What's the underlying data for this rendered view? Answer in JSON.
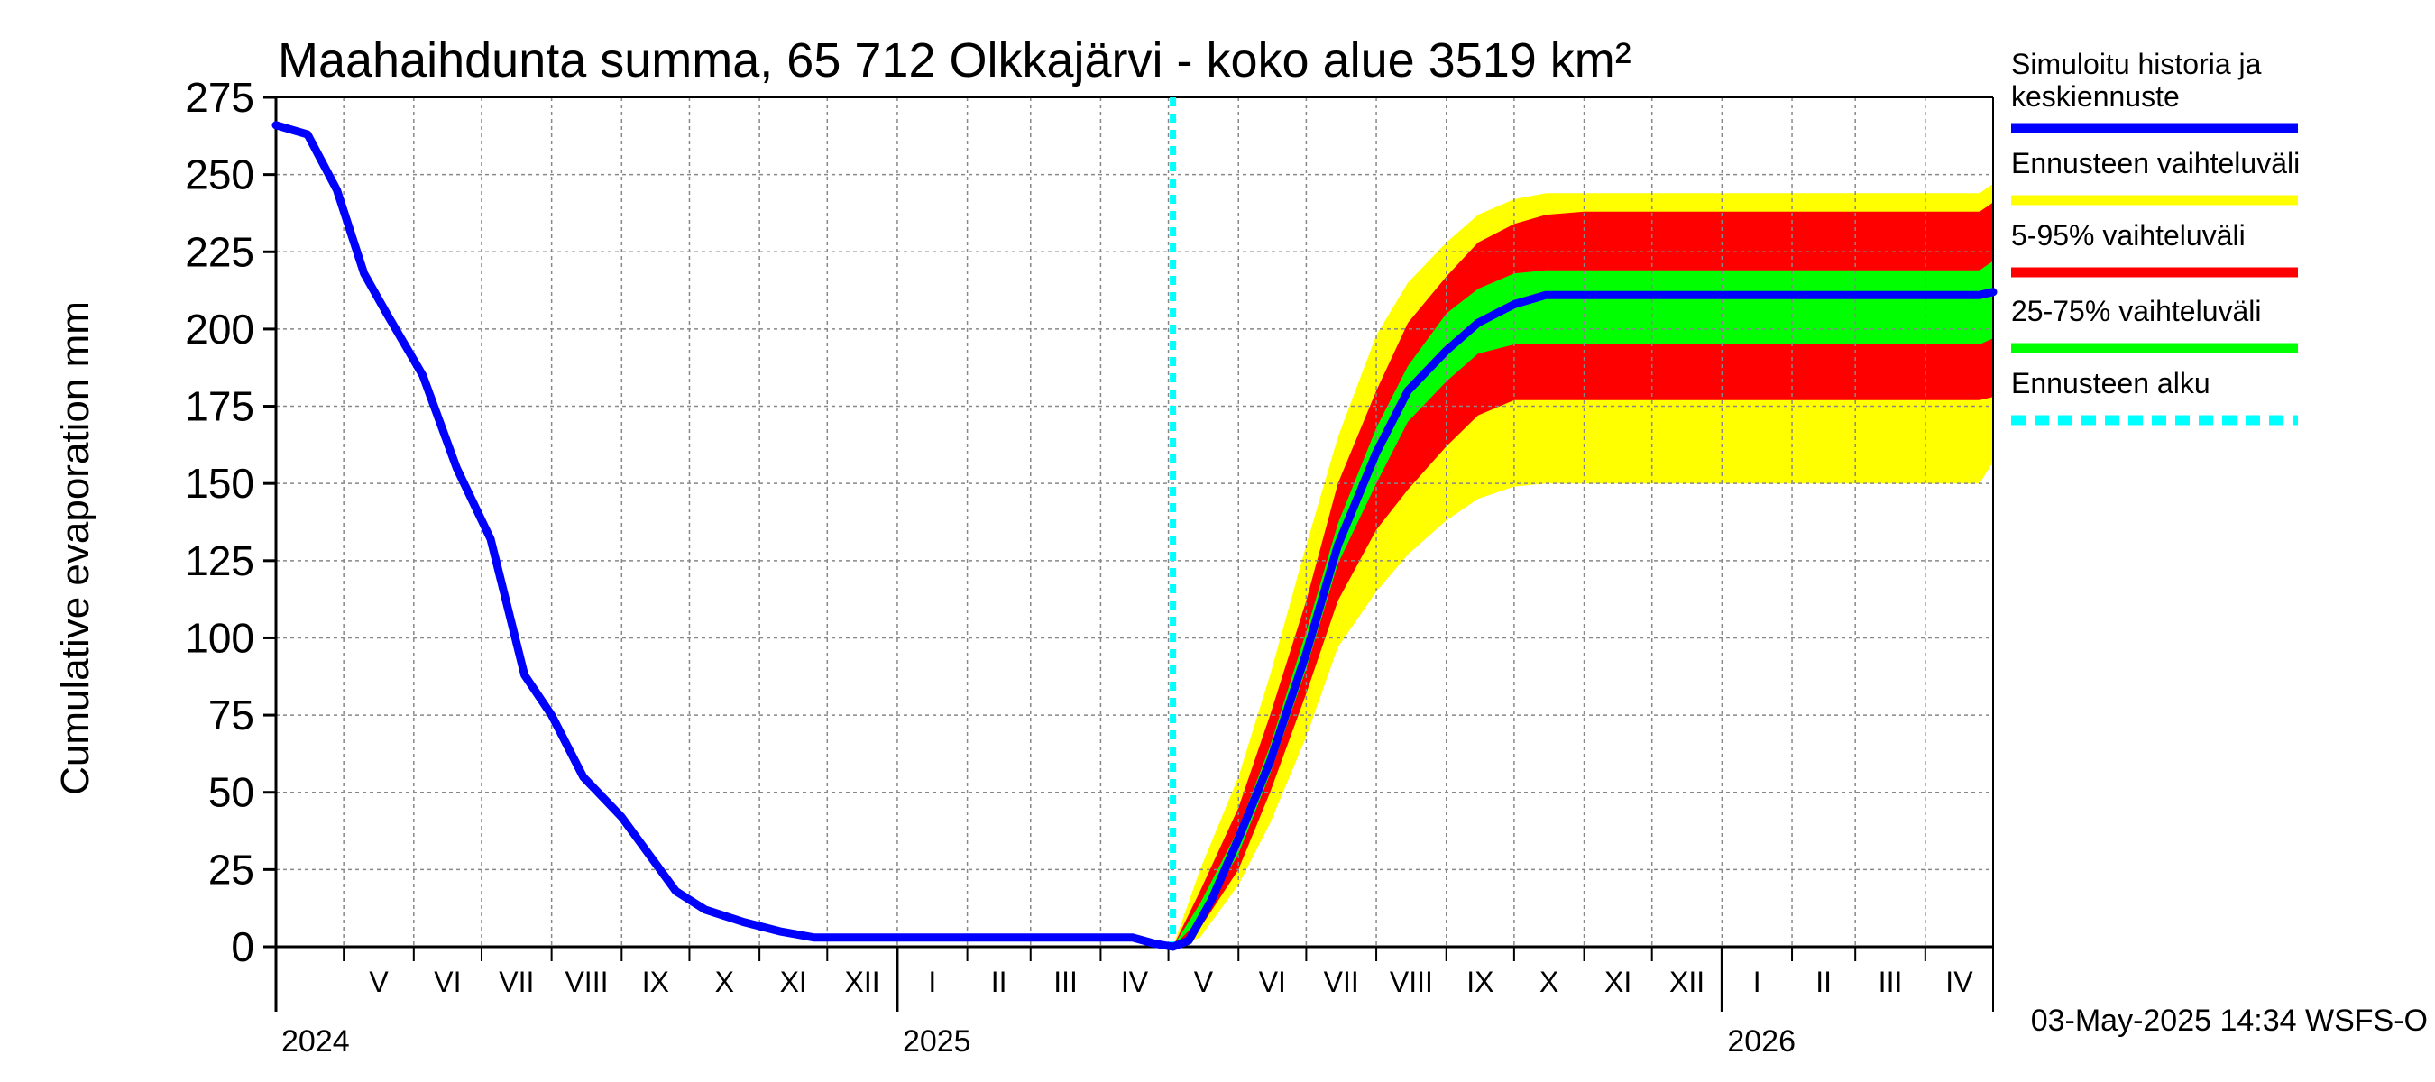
{
  "chart_data": {
    "type": "line",
    "title": "Maahaihdunta summa, 65 712 Olkkajärvi - koko alue 3519 km²",
    "ylabel": "Cumulative evaporation   mm",
    "xlabel": "",
    "ylim": [
      0,
      275
    ],
    "y_ticks": [
      0,
      25,
      50,
      75,
      100,
      125,
      150,
      175,
      200,
      225,
      250,
      275
    ],
    "grid": true,
    "legend_position": "right",
    "x_range": [
      "2024-04-01",
      "2026-05-01"
    ],
    "month_labels": [
      "V",
      "VI",
      "VII",
      "VIII",
      "IX",
      "X",
      "XI",
      "XII",
      "I",
      "II",
      "III",
      "IV",
      "V",
      "VI",
      "VII",
      "VIII",
      "IX",
      "X",
      "XI",
      "XII",
      "I",
      "II",
      "III",
      "IV"
    ],
    "year_labels": [
      "2024",
      "2025",
      "2026"
    ],
    "forecast_start": "2025-05-03",
    "footer": "03-May-2025 14:34 WSFS-O",
    "colors": {
      "history": "#0000ff",
      "range_full": "#ffff00",
      "range_5_95": "#ff0000",
      "range_25_75": "#00ff00",
      "forecast_start": "#00ffff",
      "grid": "#888888"
    },
    "legend": [
      {
        "label": "Simuloitu historia ja keskiennuste",
        "color": "#0000ff",
        "style": "solid"
      },
      {
        "label": "Ennusteen vaihteluväli",
        "color": "#ffff00",
        "style": "solid"
      },
      {
        "label": "5-95% vaihteluväli",
        "color": "#ff0000",
        "style": "solid"
      },
      {
        "label": "25-75% vaihteluväli",
        "color": "#00ff00",
        "style": "solid"
      },
      {
        "label": "Ennusteen alku",
        "color": "#00ffff",
        "style": "dashed"
      }
    ],
    "series": [
      {
        "name": "Simuloitu historia ja keskiennuste",
        "role": "history_and_median",
        "points": [
          [
            "2024-04-01",
            266
          ],
          [
            "2024-04-15",
            263
          ],
          [
            "2024-04-28",
            245
          ],
          [
            "2024-05-10",
            218
          ],
          [
            "2024-05-20",
            205
          ],
          [
            "2024-06-05",
            185
          ],
          [
            "2024-06-20",
            155
          ],
          [
            "2024-07-05",
            132
          ],
          [
            "2024-07-20",
            88
          ],
          [
            "2024-08-01",
            75
          ],
          [
            "2024-08-15",
            55
          ],
          [
            "2024-09-01",
            42
          ],
          [
            "2024-09-15",
            28
          ],
          [
            "2024-09-25",
            18
          ],
          [
            "2024-10-08",
            12
          ],
          [
            "2024-10-25",
            8
          ],
          [
            "2024-11-10",
            5
          ],
          [
            "2024-11-25",
            3
          ],
          [
            "2024-12-15",
            3
          ],
          [
            "2025-01-15",
            3
          ],
          [
            "2025-02-15",
            3
          ],
          [
            "2025-03-15",
            3
          ],
          [
            "2025-04-15",
            3
          ],
          [
            "2025-04-25",
            1
          ],
          [
            "2025-05-03",
            0
          ],
          [
            "2025-05-10",
            2
          ],
          [
            "2025-05-20",
            15
          ],
          [
            "2025-06-01",
            35
          ],
          [
            "2025-06-15",
            60
          ],
          [
            "2025-07-01",
            95
          ],
          [
            "2025-07-15",
            130
          ],
          [
            "2025-08-01",
            160
          ],
          [
            "2025-08-15",
            180
          ],
          [
            "2025-09-01",
            193
          ],
          [
            "2025-09-15",
            202
          ],
          [
            "2025-10-01",
            208
          ],
          [
            "2025-10-15",
            211
          ],
          [
            "2025-11-01",
            211
          ],
          [
            "2026-01-01",
            211
          ],
          [
            "2026-04-25",
            211
          ],
          [
            "2026-05-01",
            212
          ]
        ]
      }
    ],
    "bands": [
      {
        "name": "Ennusteen vaihteluväli",
        "x": [
          "2025-05-03",
          "2025-05-15",
          "2025-06-01",
          "2025-06-15",
          "2025-07-01",
          "2025-07-15",
          "2025-08-01",
          "2025-08-15",
          "2025-09-01",
          "2025-09-15",
          "2025-10-01",
          "2025-10-15",
          "2025-11-01",
          "2026-01-01",
          "2026-04-25",
          "2026-05-01"
        ],
        "upper": [
          0,
          25,
          55,
          88,
          130,
          165,
          198,
          215,
          228,
          237,
          242,
          244,
          244,
          244,
          244,
          247
        ],
        "lower": [
          0,
          3,
          20,
          40,
          68,
          97,
          115,
          127,
          138,
          145,
          149,
          150,
          150,
          150,
          150,
          157
        ]
      },
      {
        "name": "5-95% vaihteluväli",
        "x": [
          "2025-05-03",
          "2025-05-15",
          "2025-06-01",
          "2025-06-15",
          "2025-07-01",
          "2025-07-15",
          "2025-08-01",
          "2025-08-15",
          "2025-09-01",
          "2025-09-15",
          "2025-10-01",
          "2025-10-15",
          "2025-11-01",
          "2026-01-01",
          "2026-04-25",
          "2026-05-01"
        ],
        "upper": [
          0,
          18,
          45,
          75,
          112,
          150,
          180,
          202,
          217,
          228,
          234,
          237,
          238,
          238,
          238,
          241
        ],
        "lower": [
          0,
          6,
          25,
          50,
          82,
          112,
          135,
          148,
          162,
          172,
          177,
          177,
          177,
          177,
          177,
          178
        ]
      },
      {
        "name": "25-75% vaihteluväli",
        "x": [
          "2025-05-03",
          "2025-05-15",
          "2025-06-01",
          "2025-06-15",
          "2025-07-01",
          "2025-07-15",
          "2025-08-01",
          "2025-08-15",
          "2025-09-01",
          "2025-09-15",
          "2025-10-01",
          "2025-10-15",
          "2025-11-01",
          "2026-01-01",
          "2026-04-25",
          "2026-05-01"
        ],
        "upper": [
          0,
          14,
          38,
          65,
          102,
          137,
          168,
          188,
          205,
          213,
          218,
          219,
          219,
          219,
          219,
          222
        ],
        "lower": [
          0,
          9,
          30,
          56,
          90,
          124,
          150,
          170,
          183,
          192,
          195,
          195,
          195,
          195,
          195,
          197
        ]
      }
    ]
  }
}
